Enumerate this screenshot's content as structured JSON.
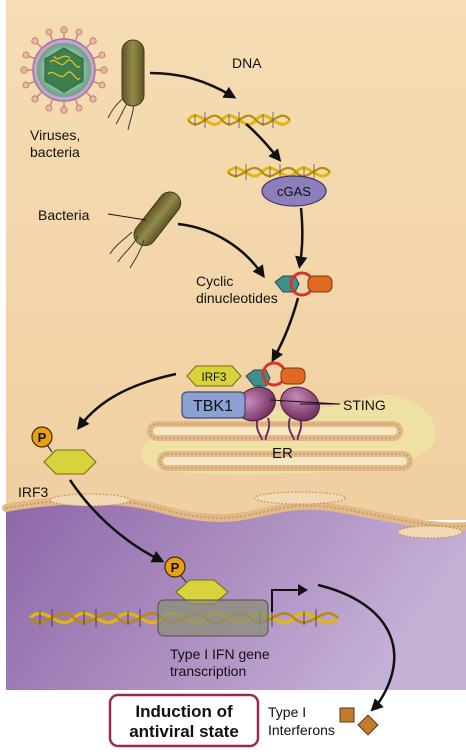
{
  "labels": {
    "viruses_bacteria_line1": "Viruses,",
    "viruses_bacteria_line2": "bacteria",
    "dna": "DNA",
    "cgas": "cGAS",
    "bacteria": "Bacteria",
    "cyclic_line1": "Cyclic",
    "cyclic_line2": "dinucleotides",
    "irf3_bound": "IRF3",
    "tbk1": "TBK1",
    "sting": "STING",
    "er": "ER",
    "irf3": "IRF3",
    "phospho_1": "P",
    "phospho_2": "P",
    "transcription_line1": "Type I IFN gene",
    "transcription_line2": "transcription",
    "induction_line1": "Induction of",
    "induction_line2": "antiviral state",
    "interferons_line1": "Type I",
    "interferons_line2": "Interferons"
  },
  "colors": {
    "cytoplasm": "#f4d7ac",
    "nucleus": "#9c76b3",
    "er_membrane": "#f1e6ad",
    "dna_strand": "#e3b60c",
    "cgas": "#8c7fbb",
    "sting": "#8b4a7a",
    "tbk1": "#8da0d2",
    "irf3": "#d8d33b",
    "phosphate": "#e8a013",
    "cdn_teal": "#3f8f8c",
    "cdn_orange": "#e06a20",
    "cdn_ring": "#d6372a",
    "bacterium": "#7b7238",
    "virus": "#8fc3a4",
    "interferon": "#c27a2c",
    "induction_border": "#9b2a44"
  }
}
